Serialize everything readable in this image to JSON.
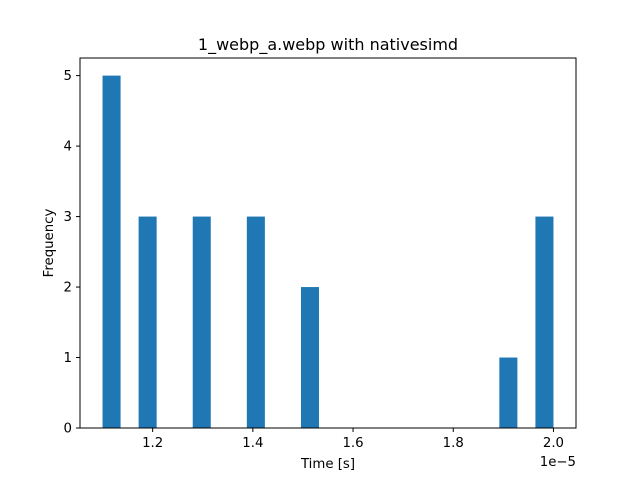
{
  "chart_data": {
    "type": "bar",
    "title": "1_webp_a.webp with nativesimd",
    "xlabel": "Time [s]",
    "ylabel": "Frequency",
    "x_offset_label": "1e−5",
    "x_scale": 1e-05,
    "xlim": [
      1.055,
      2.045
    ],
    "ylim": [
      0,
      5.25
    ],
    "bin_width": 0.036,
    "bins": [
      {
        "x_start": 1.1,
        "value": 5
      },
      {
        "x_start": 1.172,
        "value": 3
      },
      {
        "x_start": 1.28,
        "value": 3
      },
      {
        "x_start": 1.388,
        "value": 3
      },
      {
        "x_start": 1.496,
        "value": 2
      },
      {
        "x_start": 1.892,
        "value": 1
      },
      {
        "x_start": 1.964,
        "value": 3
      }
    ],
    "x_ticks": [
      1.2,
      1.4,
      1.6,
      1.8,
      2.0
    ],
    "x_tick_labels": [
      "1.2",
      "1.4",
      "1.6",
      "1.8",
      "2.0"
    ],
    "y_ticks": [
      0,
      1,
      2,
      3,
      4,
      5
    ],
    "y_tick_labels": [
      "0",
      "1",
      "2",
      "3",
      "4",
      "5"
    ],
    "bar_color": "#1f77b4",
    "grid": false,
    "legend": "none"
  }
}
